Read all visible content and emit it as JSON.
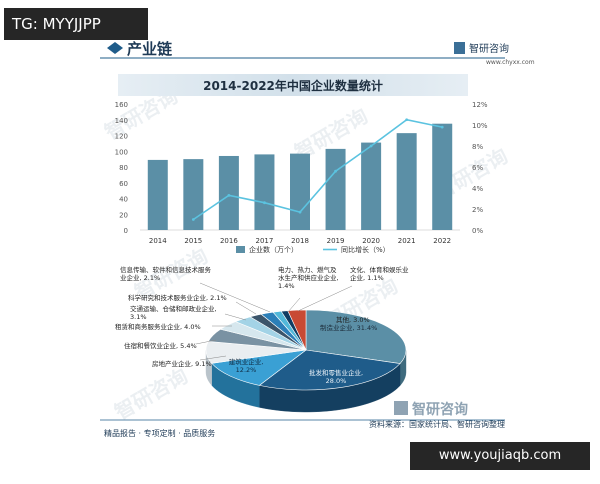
{
  "watermark_top": "TG: MYYJJPP",
  "watermark_bottom": "www.youjiaqb.com",
  "header": {
    "section_title": "产业链",
    "brand_name": "智研咨询",
    "brand_url": "www.chyxx.com"
  },
  "footer": {
    "left": "精品报告 · 专项定制 · 品质服务",
    "right": "资料来源：国家统计局、智研咨询整理",
    "brand_name": "智研咨询"
  },
  "bg_watermark_text": "智研咨询",
  "colors": {
    "bar": "#5b8fa6",
    "line": "#5bc3e0",
    "accent": "#1f5c8a",
    "title_bg": "#dde8f0"
  },
  "chart_data": [
    {
      "type": "bar",
      "title": "2014-2022年中国企业数量统计",
      "categories": [
        "2014",
        "2015",
        "2016",
        "2017",
        "2018",
        "2019",
        "2020",
        "2021",
        "2022"
      ],
      "series": [
        {
          "name": "企业数（万个）",
          "type": "bar",
          "axis": "left",
          "values": [
            89,
            90,
            94,
            96,
            97,
            103,
            111,
            123,
            135
          ]
        },
        {
          "name": "同比增长（%）",
          "type": "line",
          "axis": "right",
          "values": [
            null,
            1.0,
            3.3,
            2.6,
            1.7,
            5.6,
            8.0,
            10.5,
            9.8
          ]
        }
      ],
      "y_left": {
        "ticks": [
          "0",
          "20",
          "40",
          "60",
          "80",
          "100",
          "120",
          "140",
          "160"
        ],
        "range": [
          0,
          160
        ]
      },
      "y_right": {
        "ticks": [
          "0%",
          "2%",
          "4%",
          "6%",
          "8%",
          "10%",
          "12%"
        ],
        "range": [
          0,
          12
        ]
      },
      "legend_position": "bottom",
      "grid": false
    },
    {
      "type": "pie",
      "slices": [
        {
          "label": "制造业企业",
          "value": 31.4,
          "text": "制造业企业, 31.4%"
        },
        {
          "label": "批发和零售业企业",
          "value": 28.0,
          "text": "批发和零售业企业, 28.0%"
        },
        {
          "label": "建筑业企业",
          "value": 12.2,
          "text": "建筑业企业, 12.2%"
        },
        {
          "label": "房地产业企业",
          "value": 9.1,
          "text": "房地产业企业, 9.1%"
        },
        {
          "label": "住宿和餐饮业企业",
          "value": 5.4,
          "text": "住宿和餐饮业企业, 5.4%"
        },
        {
          "label": "租赁和商务服务业企业",
          "value": 4.0,
          "text": "租赁和商务服务业企业, 4.0%"
        },
        {
          "label": "交通运输、仓储和邮政业企业",
          "value": 3.1,
          "text": "交通运输、仓储和邮政业企业, 3.1%"
        },
        {
          "label": "科学研究和技术服务业企业",
          "value": 2.1,
          "text": "科学研究和技术服务业企业, 2.1%"
        },
        {
          "label": "信息传输、软件和信息技术服务业企业",
          "value": 2.1,
          "text": "信息传输、软件和信息技术服务业企业, 2.1%"
        },
        {
          "label": "电力、热力、燃气及水生产和供应业企业",
          "value": 1.4,
          "text": "电力、热力、燃气及水生产和供应业企业, 1.4%"
        },
        {
          "label": "文化、体育和娱乐业企业",
          "value": 1.1,
          "text": "文化、体育和娱乐业企业, 1.1%"
        },
        {
          "label": "其他",
          "value": 3.0,
          "text": "其他, 3.0%"
        }
      ]
    }
  ]
}
